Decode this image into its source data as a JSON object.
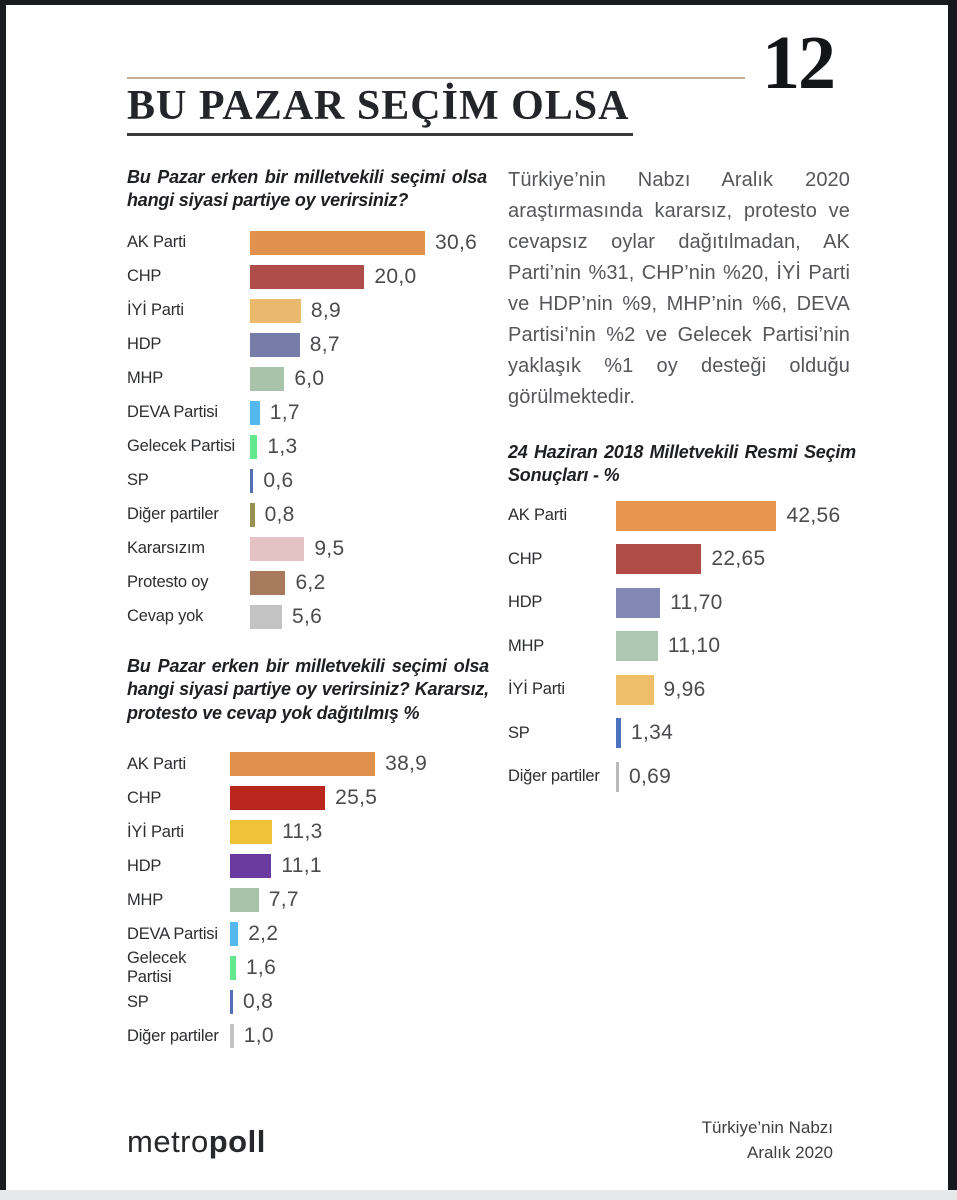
{
  "page": {
    "number": "12",
    "title": "BU PAZAR SEÇİM OLSA"
  },
  "intro_paragraph": "Türkiye’nin Nabzı Aralık 2020 araştırmasında kararsız, protesto ve cevapsız oylar dağıtılmadan, AK Parti’nin %31, CHP’nin %20, İYİ Parti ve HDP’nin %9, MHP’nin %6, DEVA Partisi’nin %2 ve Gelecek Partisi’nin yaklaşık %1 oy desteği olduğu görülmektedir.",
  "chart_data": [
    {
      "type": "bar",
      "orientation": "horizontal",
      "title": "Bu Pazar erken bir milletvekili seçimi olsa hangi siyasi partiye oy verirsiniz?",
      "categories": [
        "AK Parti",
        "CHP",
        "İYİ Parti",
        "HDP",
        "MHP",
        "DEVA Partisi",
        "Gelecek Partisi",
        "SP",
        "Diğer partiler",
        "Kararsızım",
        "Protesto oy",
        "Cevap yok"
      ],
      "values": [
        30.6,
        20.0,
        8.9,
        8.7,
        6.0,
        1.7,
        1.3,
        0.6,
        0.8,
        9.5,
        6.2,
        5.6
      ],
      "value_labels": [
        "30,6",
        "20,0",
        "8,9",
        "8,7",
        "6,0",
        "1,7",
        "1,3",
        "0,6",
        "0,8",
        "9,5",
        "6,2",
        "5,6"
      ],
      "colors": [
        "#E0914E",
        "#AE4D49",
        "#EBB96D",
        "#777DA9",
        "#A9C3AB",
        "#56B7EE",
        "#63E88C",
        "#5470B4",
        "#999152",
        "#E5C3C4",
        "#A97B5E",
        "#C3C3C3"
      ],
      "xlim": [
        0,
        32
      ],
      "grid": false,
      "legend": "none",
      "value_format": "comma-decimal"
    },
    {
      "type": "bar",
      "orientation": "horizontal",
      "title": "24 Haziran 2018 Milletvekili Resmi Seçim Sonuçları - %",
      "categories": [
        "AK Parti",
        "CHP",
        "HDP",
        "MHP",
        "İYİ Parti",
        "SP",
        "Diğer partiler"
      ],
      "values": [
        42.56,
        22.65,
        11.7,
        11.1,
        9.96,
        1.34,
        0.69
      ],
      "value_labels": [
        "42,56",
        "22,65",
        "11,70",
        "11,10",
        "9,96",
        "1,34",
        "0,69"
      ],
      "colors": [
        "#E8954F",
        "#B04B46",
        "#8289B4",
        "#AEC8B2",
        "#EFBE69",
        "#4A72C0",
        "#BBBBBB"
      ],
      "xlim": [
        0,
        45
      ],
      "grid": false,
      "legend": "none",
      "value_format": "comma-decimal"
    },
    {
      "type": "bar",
      "orientation": "horizontal",
      "title": "Bu Pazar erken bir milletvekili seçimi olsa hangi siyasi partiye oy verirsiniz? Kararsız, protesto ve cevap yok dağıtılmış %",
      "categories": [
        "AK Parti",
        "CHP",
        "İYİ Parti",
        "HDP",
        "MHP",
        "DEVA Partisi",
        "Gelecek Partisi",
        "SP",
        "Diğer partiler"
      ],
      "values": [
        38.9,
        25.5,
        11.3,
        11.1,
        7.7,
        2.2,
        1.6,
        0.8,
        1.0
      ],
      "value_labels": [
        "38,9",
        "25,5",
        "11,3",
        "11,1",
        "7,7",
        "2,2",
        "1,6",
        "0,8",
        "1,0"
      ],
      "colors": [
        "#E0914E",
        "#B9271C",
        "#EFC238",
        "#6A3A9E",
        "#A9C3AB",
        "#56B7EE",
        "#63E88C",
        "#5470B4",
        "#C3C3C3"
      ],
      "xlim": [
        0,
        41
      ],
      "grid": false,
      "legend": "none",
      "value_format": "comma-decimal"
    }
  ],
  "footer": {
    "logo_light": "metro",
    "logo_bold": "poll",
    "right_line1": "Türkiye’nin Nabzı",
    "right_line2": "Aralık 2020"
  }
}
